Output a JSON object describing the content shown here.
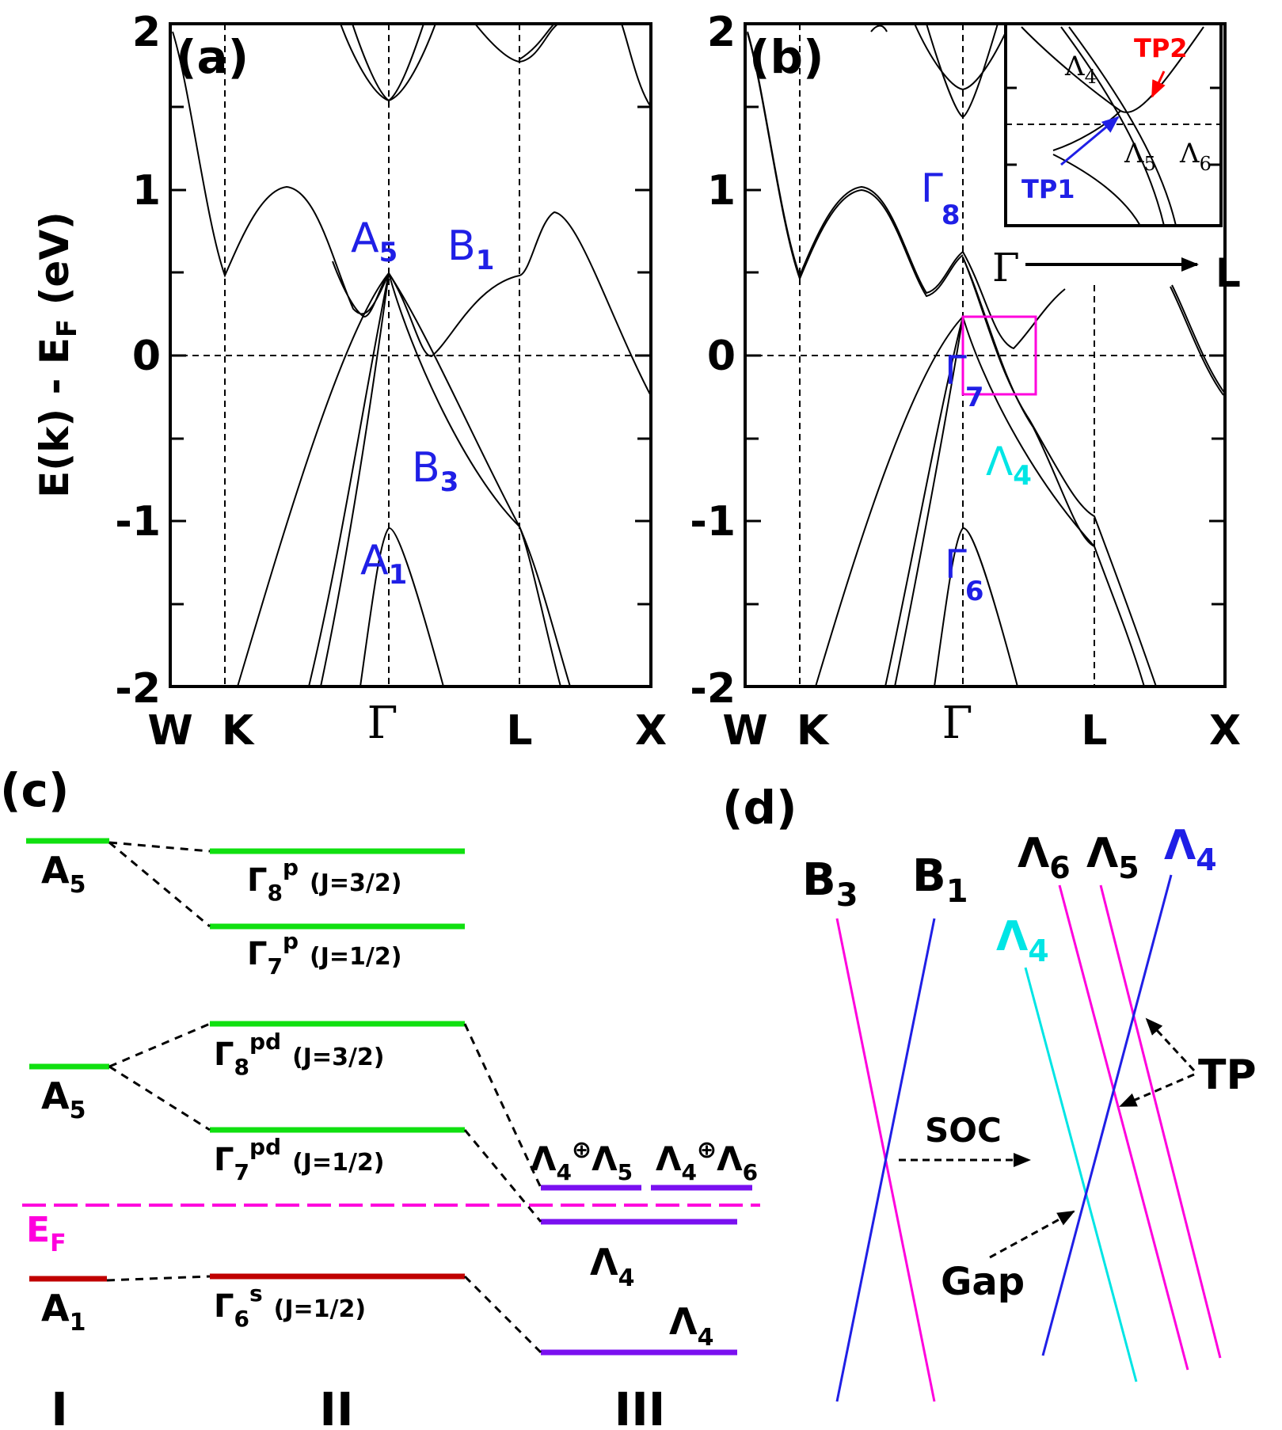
{
  "panel_labels": {
    "a": "(a)",
    "b": "(b)",
    "c": "(c)",
    "d": "(d)"
  },
  "colors": {
    "blue": "#1f1fe6",
    "cyan": "#00e5e5",
    "magenta": "#ff00dd",
    "green": "#10e010",
    "darkred": "#c00000",
    "purple": "#7a10f0",
    "red": "#ff0000"
  },
  "band_plot": {
    "y_label": "E(k) - E",
    "y_label_sub": "F",
    "y_label_tail": " (eV)",
    "y_ticks": [
      "2",
      "1",
      "0",
      "-1",
      "-2"
    ],
    "k_labels": [
      "W",
      "K",
      "Γ",
      "L",
      "X"
    ]
  },
  "panel_a_labels": [
    {
      "main": "A",
      "sub": "5"
    },
    {
      "main": "B",
      "sub": "1"
    },
    {
      "main": "B",
      "sub": "3"
    },
    {
      "main": "A",
      "sub": "1"
    }
  ],
  "panel_b_labels": [
    {
      "main": "Γ",
      "sub": "8"
    },
    {
      "main": "Γ",
      "sub": "7"
    },
    {
      "main": "Λ",
      "sub": "4"
    },
    {
      "main": "Γ",
      "sub": "6"
    }
  ],
  "inset": {
    "labels": [
      {
        "main": "Λ",
        "sub": "4"
      },
      {
        "main": "Λ",
        "sub": "5"
      },
      {
        "main": "Λ",
        "sub": "6"
      }
    ],
    "tp1": "TP1",
    "tp2": "TP2",
    "dir_from": "Γ",
    "dir_to": "L"
  },
  "panel_c": {
    "col1": [
      {
        "main": "A",
        "sub": "5"
      },
      {
        "main": "A",
        "sub": "5"
      },
      {
        "main": "A",
        "sub": "1"
      }
    ],
    "col2": [
      {
        "main": "Γ",
        "sub": "8",
        "sup": "p",
        "j": "(J=3/2)"
      },
      {
        "main": "Γ",
        "sub": "7",
        "sup": "p",
        "j": "(J=1/2)"
      },
      {
        "main": "Γ",
        "sub": "8",
        "sup": "pd",
        "j": "(J=3/2)"
      },
      {
        "main": "Γ",
        "sub": "7",
        "sup": "pd",
        "j": "(J=1/2)"
      },
      {
        "main": "Γ",
        "sub": "6",
        "sup": "s",
        "j": "(J=1/2)"
      }
    ],
    "col3": {
      "l45": {
        "a": "Λ",
        "as": "4",
        "op": "⊕",
        "b": "Λ",
        "bs": "5"
      },
      "l46": {
        "a": "Λ",
        "as": "4",
        "op": "⊕",
        "b": "Λ",
        "bs": "6"
      },
      "l4a": {
        "main": "Λ",
        "sub": "4"
      },
      "l4b": {
        "main": "Λ",
        "sub": "4"
      }
    },
    "ef": {
      "main": "E",
      "sub": "F"
    },
    "roman": [
      "I",
      "II",
      "III"
    ]
  },
  "panel_d": {
    "b3": {
      "main": "B",
      "sub": "3"
    },
    "b1": {
      "main": "B",
      "sub": "1"
    },
    "l6": {
      "main": "Λ",
      "sub": "6"
    },
    "l5": {
      "main": "Λ",
      "sub": "5"
    },
    "l4_blue": {
      "main": "Λ",
      "sub": "4"
    },
    "l4_cyan": {
      "main": "Λ",
      "sub": "4"
    },
    "soc": "SOC",
    "tp": "TP",
    "gap": "Gap"
  }
}
